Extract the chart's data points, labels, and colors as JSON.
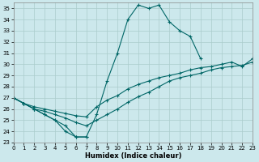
{
  "xlabel": "Humidex (Indice chaleur)",
  "bg_color": "#cce8ec",
  "grid_color": "#aacccc",
  "line_color": "#006666",
  "xlim": [
    0,
    23
  ],
  "ylim": [
    23,
    35.5
  ],
  "yticks": [
    23,
    24,
    25,
    26,
    27,
    28,
    29,
    30,
    31,
    32,
    33,
    34,
    35
  ],
  "xticks": [
    0,
    1,
    2,
    3,
    4,
    5,
    6,
    7,
    8,
    9,
    10,
    11,
    12,
    13,
    14,
    15,
    16,
    17,
    18,
    19,
    20,
    21,
    22,
    23
  ],
  "series": [
    {
      "x": [
        0,
        1,
        2,
        3,
        4,
        5,
        6,
        7,
        8,
        9,
        10,
        11,
        12,
        13,
        14,
        15,
        16,
        17,
        18,
        19,
        20,
        21,
        22,
        23
      ],
      "y": [
        27.0,
        26.5,
        26.0,
        25.5,
        25.0,
        24.5,
        23.5,
        23.5,
        25.5,
        28.5,
        31.0,
        34.0,
        35.3,
        35.0,
        35.3,
        33.8,
        33.0,
        32.5,
        30.5,
        null,
        null,
        null,
        null,
        null
      ]
    },
    {
      "x": [
        0,
        1,
        2,
        3,
        4,
        5,
        6,
        7,
        8,
        9,
        10,
        11,
        12,
        13,
        14,
        15,
        16,
        17,
        18,
        19,
        20,
        21,
        22,
        23
      ],
      "y": [
        27.0,
        26.5,
        26.0,
        25.5,
        25.0,
        24.0,
        23.5,
        23.5,
        null,
        null,
        null,
        null,
        null,
        null,
        null,
        null,
        null,
        null,
        null,
        null,
        null,
        null,
        null,
        null
      ]
    },
    {
      "x": [
        0,
        1,
        2,
        3,
        4,
        5,
        6,
        7,
        8,
        9,
        10,
        11,
        12,
        13,
        14,
        15,
        16,
        17,
        18,
        19,
        20,
        21,
        22,
        23
      ],
      "y": [
        27.0,
        26.5,
        26.2,
        26.0,
        25.8,
        25.6,
        25.4,
        25.3,
        26.2,
        26.8,
        27.2,
        27.8,
        28.2,
        28.5,
        28.8,
        29.0,
        29.2,
        29.5,
        29.7,
        29.8,
        30.0,
        30.2,
        29.8,
        30.5
      ]
    },
    {
      "x": [
        0,
        1,
        2,
        3,
        4,
        5,
        6,
        7,
        8,
        9,
        10,
        11,
        12,
        13,
        14,
        15,
        16,
        17,
        18,
        19,
        20,
        21,
        22,
        23
      ],
      "y": [
        27.0,
        26.5,
        26.0,
        25.8,
        25.5,
        25.2,
        24.8,
        24.5,
        25.0,
        25.5,
        26.0,
        26.6,
        27.1,
        27.5,
        28.0,
        28.5,
        28.8,
        29.0,
        29.2,
        29.5,
        29.7,
        29.8,
        29.9,
        30.2
      ]
    }
  ]
}
